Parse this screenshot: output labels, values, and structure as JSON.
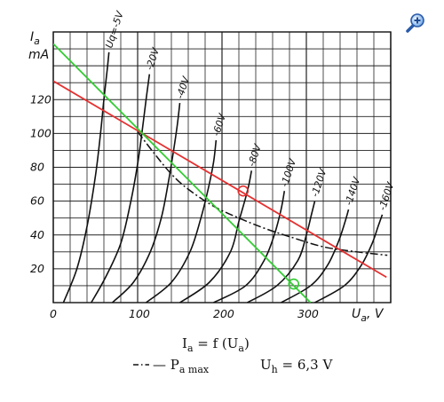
{
  "chart_data": {
    "type": "line",
    "title": "",
    "xlabel_symbol": "U",
    "xlabel_sub": "a",
    "xlabel_unit": ", V",
    "ylabel_symbol": "I",
    "ylabel_sub": "a",
    "ylabel_unit": "mA",
    "xlim": [
      0,
      400
    ],
    "ylim": [
      0,
      160
    ],
    "x_ticks": [
      0,
      100,
      200,
      300
    ],
    "y_ticks": [
      20,
      40,
      60,
      80,
      100,
      120
    ],
    "grid": true,
    "series": [
      {
        "name": "Ug=-5V",
        "label": "Uq=-5V",
        "points": [
          [
            12,
            0
          ],
          [
            28,
            20
          ],
          [
            40,
            45
          ],
          [
            50,
            75
          ],
          [
            56,
            100
          ],
          [
            60,
            120
          ],
          [
            64,
            138
          ],
          [
            66,
            148
          ]
        ]
      },
      {
        "name": "-20V",
        "label": "-20V",
        "points": [
          [
            45,
            0
          ],
          [
            62,
            15
          ],
          [
            80,
            35
          ],
          [
            92,
            60
          ],
          [
            100,
            82
          ],
          [
            105,
            100
          ],
          [
            110,
            120
          ],
          [
            114,
            135
          ]
        ]
      },
      {
        "name": "-40V",
        "label": "-40V",
        "points": [
          [
            70,
            0
          ],
          [
            95,
            12
          ],
          [
            115,
            30
          ],
          [
            128,
            50
          ],
          [
            136,
            70
          ],
          [
            142,
            88
          ],
          [
            147,
            105
          ],
          [
            150,
            118
          ]
        ]
      },
      {
        "name": "-60V",
        "label": "-60V",
        "points": [
          [
            110,
            0
          ],
          [
            140,
            12
          ],
          [
            162,
            30
          ],
          [
            175,
            50
          ],
          [
            184,
            68
          ],
          [
            190,
            83
          ],
          [
            193,
            96
          ]
        ]
      },
      {
        "name": "-80V",
        "label": "-80V",
        "points": [
          [
            150,
            0
          ],
          [
            185,
            12
          ],
          [
            210,
            30
          ],
          [
            220,
            48
          ],
          [
            228,
            62
          ],
          [
            232,
            70
          ],
          [
            235,
            78
          ]
        ]
      },
      {
        "name": "-100V",
        "label": "-100V",
        "points": [
          [
            190,
            0
          ],
          [
            228,
            10
          ],
          [
            250,
            25
          ],
          [
            262,
            40
          ],
          [
            270,
            55
          ],
          [
            274,
            66
          ]
        ]
      },
      {
        "name": "-120V",
        "label": "-120V",
        "points": [
          [
            230,
            0
          ],
          [
            265,
            10
          ],
          [
            290,
            25
          ],
          [
            300,
            40
          ],
          [
            306,
            52
          ],
          [
            310,
            60
          ]
        ]
      },
      {
        "name": "-140V",
        "label": "-140V",
        "points": [
          [
            270,
            0
          ],
          [
            305,
            10
          ],
          [
            325,
            22
          ],
          [
            338,
            36
          ],
          [
            346,
            48
          ],
          [
            350,
            55
          ]
        ]
      },
      {
        "name": "-160V",
        "label": "-160V",
        "points": [
          [
            310,
            0
          ],
          [
            345,
            10
          ],
          [
            365,
            22
          ],
          [
            378,
            35
          ],
          [
            385,
            45
          ],
          [
            390,
            52
          ]
        ]
      }
    ],
    "pa_max_curve": {
      "name": "Pa max",
      "points": [
        [
          100,
          101
        ],
        [
          120,
          88
        ],
        [
          140,
          76
        ],
        [
          160,
          67
        ],
        [
          190,
          57
        ],
        [
          220,
          50
        ],
        [
          250,
          44
        ],
        [
          280,
          39
        ],
        [
          320,
          33
        ],
        [
          360,
          30
        ],
        [
          396,
          28
        ]
      ]
    },
    "load_lines": [
      {
        "color": "#e53030",
        "points": [
          [
            0,
            131
          ],
          [
            395,
            15
          ]
        ],
        "marker": [
          225,
          66
        ]
      },
      {
        "color": "#33cc33",
        "points": [
          [
            0,
            153
          ],
          [
            305,
            0
          ]
        ],
        "marker": [
          285,
          11
        ]
      }
    ],
    "legend": {
      "formula_lhs_symbol": "I",
      "formula_lhs_sub": "a",
      "formula_mid": " = f (U",
      "formula_arg_sub": "a",
      "formula_end": ")",
      "pa_symbol": "— P",
      "pa_sub": "a max",
      "uh_symbol": "U",
      "uh_sub": "h",
      "uh_value": " = 6,3 V"
    }
  },
  "colors": {
    "curve": "#111111",
    "grid": "#222222",
    "red_line": "#e53030",
    "green_line": "#33cc33"
  },
  "toolbar": {
    "zoom_icon": "magnifier-plus-icon"
  }
}
